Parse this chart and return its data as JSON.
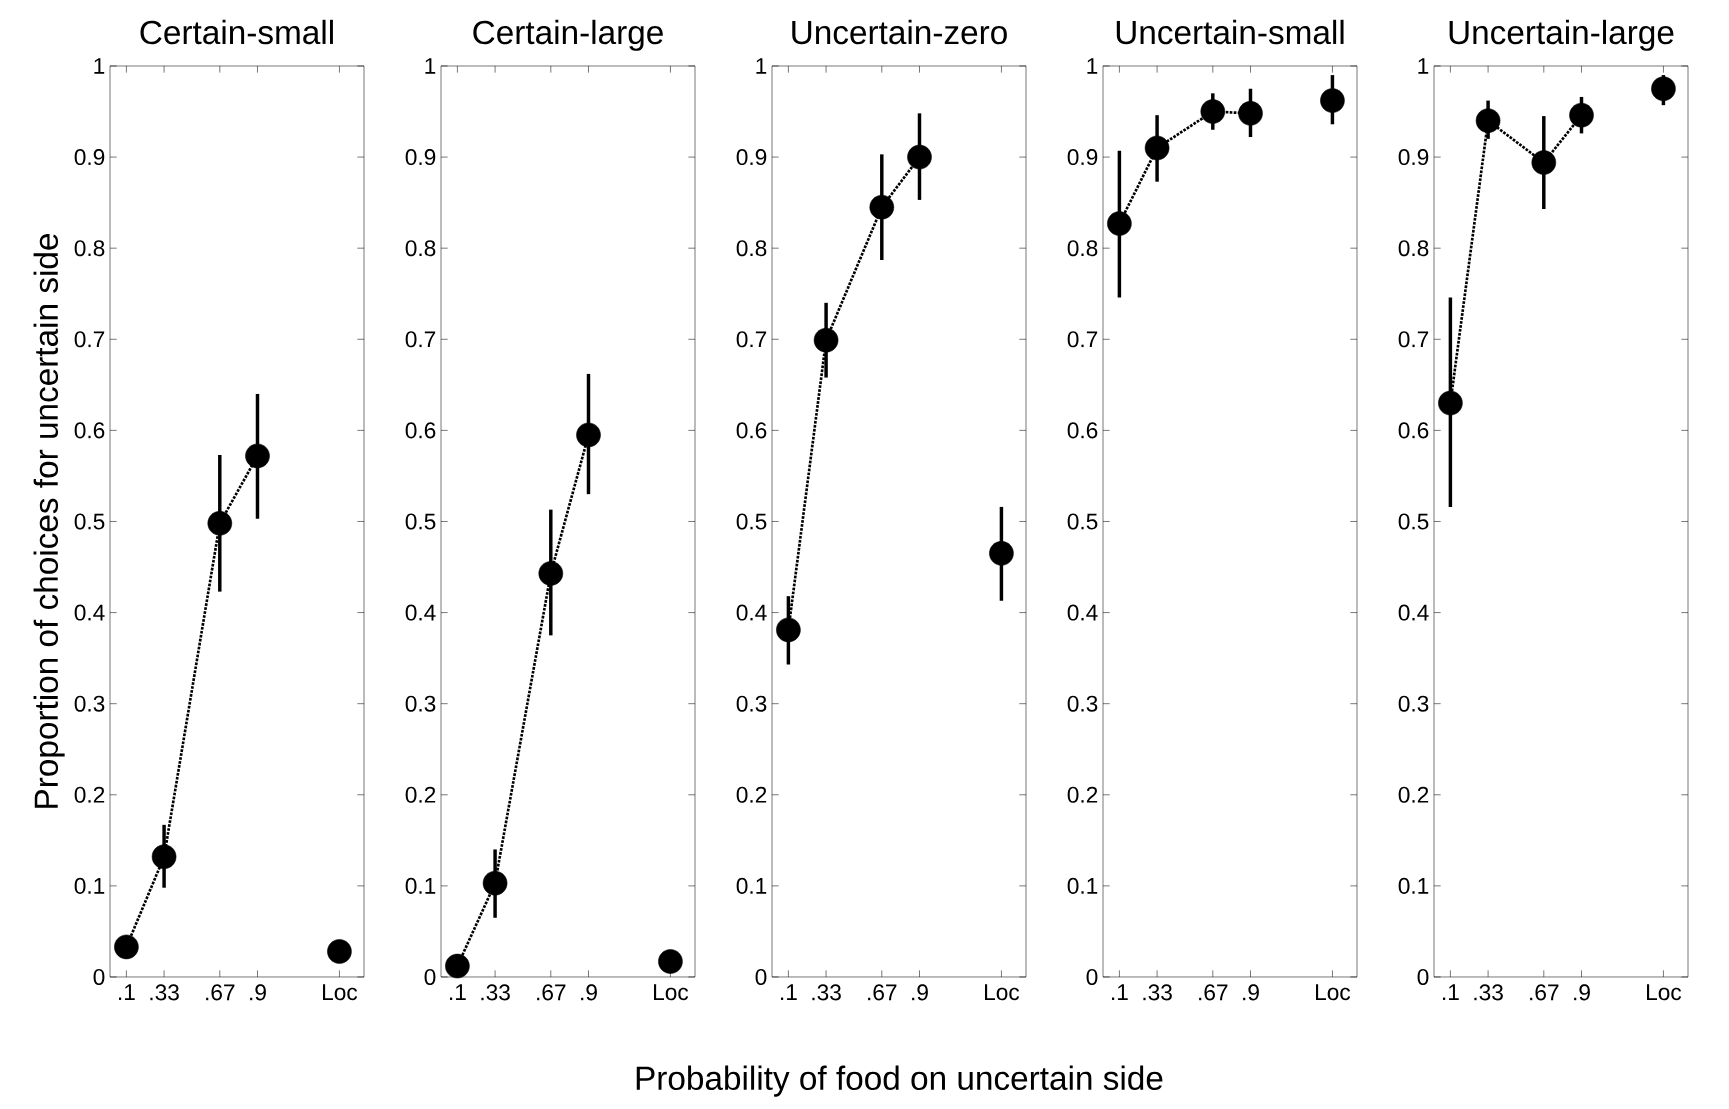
{
  "chart_data": [
    {
      "type": "line",
      "title": "Certain-small",
      "ylabel": "Proportion of choices for uncertain side",
      "marker": "circle",
      "line_style": "dotted",
      "xlim": [
        0,
        1.55
      ],
      "xticks": [
        {
          "value": 0.1,
          "label": ".1"
        },
        {
          "value": 0.33,
          "label": ".33"
        },
        {
          "value": 0.67,
          "label": ".67"
        },
        {
          "value": 0.9,
          "label": ".9"
        },
        {
          "value": 1.4,
          "label": "Loc"
        }
      ],
      "ylim": [
        0,
        1
      ],
      "yticks": [
        0,
        0.1,
        0.2,
        0.3,
        0.4,
        0.5,
        0.6,
        0.7,
        0.8,
        0.9,
        1
      ],
      "series": [
        {
          "type": "line",
          "color": "#000000",
          "x": [
            0.1,
            0.33,
            0.67,
            0.9
          ],
          "values": [
            0.033,
            0.132,
            0.498,
            0.572
          ],
          "errors": [
            null,
            [
              0.098,
              0.167
            ],
            [
              0.423,
              0.573
            ],
            [
              0.503,
              0.64
            ]
          ]
        },
        {
          "type": "scatter",
          "color": "#000000",
          "x": [
            1.4
          ],
          "values": [
            0.028
          ],
          "errors": [
            null
          ]
        }
      ]
    },
    {
      "type": "line",
      "title": "Certain-large",
      "marker": "circle",
      "line_style": "dotted",
      "xlim": [
        0,
        1.55
      ],
      "xticks": [
        {
          "value": 0.1,
          "label": ".1"
        },
        {
          "value": 0.33,
          "label": ".33"
        },
        {
          "value": 0.67,
          "label": ".67"
        },
        {
          "value": 0.9,
          "label": ".9"
        },
        {
          "value": 1.4,
          "label": "Loc"
        }
      ],
      "ylim": [
        0,
        1
      ],
      "yticks": [
        0,
        0.1,
        0.2,
        0.3,
        0.4,
        0.5,
        0.6,
        0.7,
        0.8,
        0.9,
        1
      ],
      "series": [
        {
          "type": "line",
          "color": "#000000",
          "x": [
            0.1,
            0.33,
            0.67,
            0.9
          ],
          "values": [
            0.012,
            0.103,
            0.443,
            0.595
          ],
          "errors": [
            null,
            [
              0.065,
              0.14
            ],
            [
              0.375,
              0.513
            ],
            [
              0.53,
              0.662
            ]
          ]
        },
        {
          "type": "scatter",
          "color": "#000000",
          "x": [
            1.4
          ],
          "values": [
            0.017
          ],
          "errors": [
            null
          ]
        }
      ]
    },
    {
      "type": "line",
      "title": "Uncertain-zero",
      "xlabel": "Probability of food on uncertain side",
      "marker": "circle",
      "line_style": "dotted",
      "xlim": [
        0,
        1.55
      ],
      "xticks": [
        {
          "value": 0.1,
          "label": ".1"
        },
        {
          "value": 0.33,
          "label": ".33"
        },
        {
          "value": 0.67,
          "label": ".67"
        },
        {
          "value": 0.9,
          "label": ".9"
        },
        {
          "value": 1.4,
          "label": "Loc"
        }
      ],
      "ylim": [
        0,
        1
      ],
      "yticks": [
        0,
        0.1,
        0.2,
        0.3,
        0.4,
        0.5,
        0.6,
        0.7,
        0.8,
        0.9,
        1
      ],
      "series": [
        {
          "type": "line",
          "color": "#000000",
          "x": [
            0.1,
            0.33,
            0.67,
            0.9
          ],
          "values": [
            0.381,
            0.699,
            0.845,
            0.9
          ],
          "errors": [
            [
              0.343,
              0.418
            ],
            [
              0.658,
              0.74
            ],
            [
              0.787,
              0.903
            ],
            [
              0.853,
              0.948
            ]
          ]
        },
        {
          "type": "scatter",
          "color": "#000000",
          "x": [
            1.4
          ],
          "values": [
            0.465
          ],
          "errors": [
            [
              0.413,
              0.516
            ]
          ]
        }
      ]
    },
    {
      "type": "line",
      "title": "Uncertain-small",
      "marker": "circle",
      "line_style": "dotted",
      "xlim": [
        0,
        1.55
      ],
      "xticks": [
        {
          "value": 0.1,
          "label": ".1"
        },
        {
          "value": 0.33,
          "label": ".33"
        },
        {
          "value": 0.67,
          "label": ".67"
        },
        {
          "value": 0.9,
          "label": ".9"
        },
        {
          "value": 1.4,
          "label": "Loc"
        }
      ],
      "ylim": [
        0,
        1
      ],
      "yticks": [
        0,
        0.1,
        0.2,
        0.3,
        0.4,
        0.5,
        0.6,
        0.7,
        0.8,
        0.9,
        1
      ],
      "series": [
        {
          "type": "line",
          "color": "#000000",
          "x": [
            0.1,
            0.33,
            0.67,
            0.9
          ],
          "values": [
            0.827,
            0.91,
            0.95,
            0.948
          ],
          "errors": [
            [
              0.746,
              0.907
            ],
            [
              0.873,
              0.946
            ],
            [
              0.93,
              0.97
            ],
            [
              0.922,
              0.975
            ]
          ]
        },
        {
          "type": "scatter",
          "color": "#000000",
          "x": [
            1.4
          ],
          "values": [
            0.962
          ],
          "errors": [
            [
              0.936,
              0.99
            ]
          ]
        }
      ]
    },
    {
      "type": "line",
      "title": "Uncertain-large",
      "marker": "circle",
      "line_style": "dotted",
      "xlim": [
        0,
        1.55
      ],
      "xticks": [
        {
          "value": 0.1,
          "label": ".1"
        },
        {
          "value": 0.33,
          "label": ".33"
        },
        {
          "value": 0.67,
          "label": ".67"
        },
        {
          "value": 0.9,
          "label": ".9"
        },
        {
          "value": 1.4,
          "label": "Loc"
        }
      ],
      "ylim": [
        0,
        1
      ],
      "yticks": [
        0,
        0.1,
        0.2,
        0.3,
        0.4,
        0.5,
        0.6,
        0.7,
        0.8,
        0.9,
        1
      ],
      "series": [
        {
          "type": "line",
          "color": "#000000",
          "x": [
            0.1,
            0.33,
            0.67,
            0.9
          ],
          "values": [
            0.63,
            0.94,
            0.894,
            0.946
          ],
          "errors": [
            [
              0.516,
              0.746
            ],
            [
              0.92,
              0.962
            ],
            [
              0.843,
              0.945
            ],
            [
              0.926,
              0.966
            ]
          ]
        },
        {
          "type": "scatter",
          "color": "#000000",
          "x": [
            1.4
          ],
          "values": [
            0.975
          ],
          "errors": [
            [
              0.957,
              0.99
            ]
          ]
        }
      ]
    }
  ]
}
